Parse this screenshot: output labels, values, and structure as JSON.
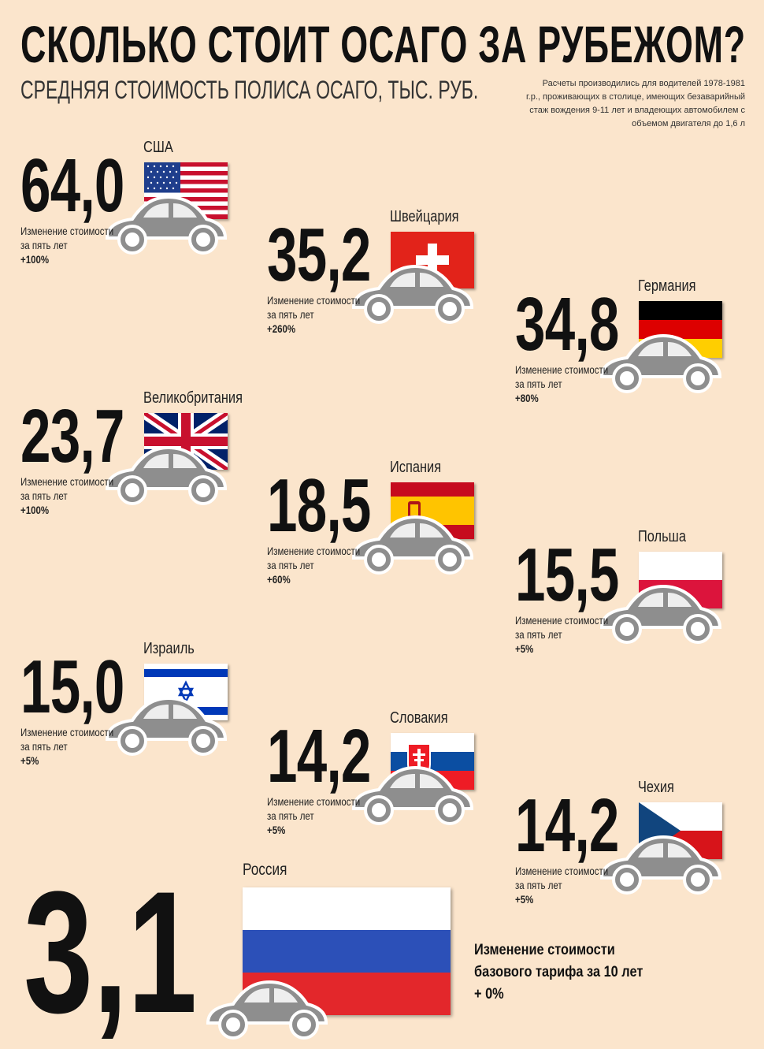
{
  "header": {
    "title": "СКОЛЬКО СТОИТ ОСАГО ЗА РУБЕЖОМ?",
    "subtitle": "СРЕДНЯЯ СТОИМОСТЬ ПОЛИСА ОСАГО, ТЫС. РУБ.",
    "note_lines": [
      "Расчеты производились для водителей 1978-1981",
      "г.р., проживающих в столице, имеющих безаварийный",
      "стаж вождения 9-11 лет и владеющих автомобилем с",
      "объемом двигателя до 1,6 л"
    ]
  },
  "change_label_lines": [
    "Изменение стоимости",
    "за пять лет"
  ],
  "countries": [
    {
      "name": "США",
      "value": "64,0",
      "change": "+100%",
      "flag": "us-flag"
    },
    {
      "name": "Швейцария",
      "value": "35,2",
      "change": "+260%",
      "flag": "swiss-flag"
    },
    {
      "name": "Германия",
      "value": "34,8",
      "change": "+80%",
      "flag": "german-flag"
    },
    {
      "name": "Великобритания",
      "value": "23,7",
      "change": "+100%",
      "flag": "uk-flag"
    },
    {
      "name": "Испания",
      "value": "18,5",
      "change": "+60%",
      "flag": "spain-flag"
    },
    {
      "name": "Польша",
      "value": "15,5",
      "change": "+5%",
      "flag": "poland-flag"
    },
    {
      "name": "Израиль",
      "value": "15,0",
      "change": "+5%",
      "flag": "israel-flag"
    },
    {
      "name": "Словакия",
      "value": "14,2",
      "change": "+5%",
      "flag": "slovakia-flag"
    },
    {
      "name": "Чехия",
      "value": "14,2",
      "change": "+5%",
      "flag": "czech-flag"
    }
  ],
  "russia": {
    "name": "Россия",
    "value": "3,1",
    "change_lines": [
      "Изменение стоимости",
      "базового тарифа за 10 лет",
      "+ 0%"
    ],
    "flag": "russia-flag"
  },
  "colors": {
    "background": "#fbe5cc",
    "car": "#8e8e8e",
    "text": "#111111"
  }
}
